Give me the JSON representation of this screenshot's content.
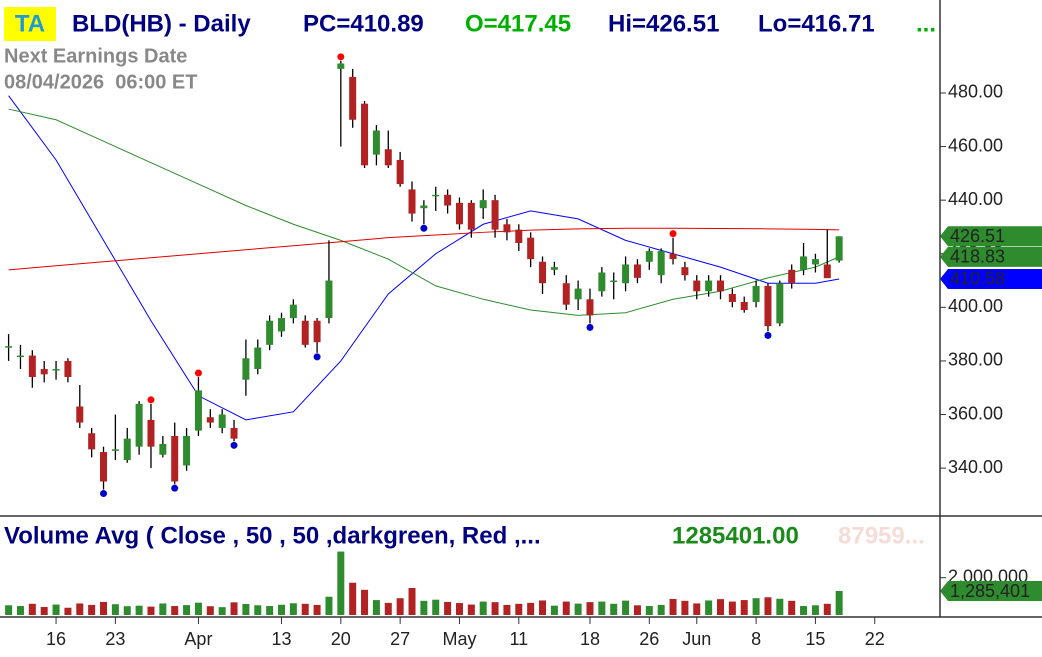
{
  "header": {
    "badge": "TA",
    "symbol": "BLD(HB) - Daily",
    "pc": "PC=410.89",
    "open": "O=417.45",
    "high": "Hi=426.51",
    "low": "Lo=416.71",
    "more": "...",
    "earnings_title": "Next Earnings Date",
    "earnings_date": "08/04/2026  06:00 ET"
  },
  "chart_data": {
    "type": "candlestick",
    "up_color": "#2e8b2e",
    "down_color": "#b22222",
    "x": [
      0,
      1,
      2,
      3,
      4,
      5,
      6,
      7,
      8,
      9,
      10,
      11,
      12,
      13,
      14,
      15,
      16,
      17,
      18,
      19,
      20,
      21,
      22,
      23,
      24,
      25,
      26,
      27,
      28,
      29,
      30,
      31,
      32,
      33,
      34,
      35,
      36,
      37,
      38,
      39,
      40,
      41,
      42,
      43,
      44,
      45,
      46,
      47,
      48,
      49,
      50,
      51,
      52,
      53,
      54,
      55,
      56,
      57,
      58,
      59,
      60,
      61,
      62,
      63,
      64,
      65,
      66,
      67,
      68,
      69,
      70
    ],
    "open": [
      385,
      382,
      382,
      377,
      377,
      380,
      363,
      353,
      346,
      347,
      343,
      348,
      358,
      345,
      352,
      341,
      354,
      359,
      355,
      355,
      373,
      377,
      386,
      391,
      396,
      395,
      395,
      396,
      489,
      486,
      476,
      457,
      459,
      455,
      444,
      437,
      442,
      442,
      439,
      439,
      437,
      440,
      431,
      429,
      426,
      417,
      414,
      409,
      403,
      403,
      406,
      410,
      409,
      416,
      417,
      412,
      420,
      415,
      410,
      406,
      410,
      405,
      402,
      402,
      408,
      394,
      414,
      414,
      416,
      416,
      417.45
    ],
    "high": [
      390,
      386,
      384,
      380,
      380,
      381,
      371,
      355,
      348,
      360,
      355,
      365,
      364,
      352,
      357,
      355,
      374,
      362,
      362,
      358,
      388,
      388,
      397,
      398,
      403,
      397,
      396,
      425,
      492,
      489,
      477,
      468,
      466,
      458,
      447,
      440,
      445,
      444,
      441,
      440,
      444,
      442,
      433,
      431,
      428,
      419,
      417,
      412,
      410,
      407,
      415,
      413,
      419,
      418,
      422,
      422,
      426,
      417,
      412,
      412,
      412,
      407,
      404,
      410,
      409,
      410,
      416,
      424,
      420,
      429,
      426.51
    ],
    "low": [
      380,
      377,
      370,
      372,
      373,
      372,
      355,
      344,
      332,
      343,
      342,
      345,
      340,
      344,
      334,
      339,
      352,
      355,
      353,
      350,
      367,
      375,
      384,
      389,
      394,
      385,
      383,
      394,
      460,
      467,
      452,
      453,
      452,
      445,
      432,
      431,
      436,
      435,
      429,
      426,
      433,
      426,
      425,
      421,
      415,
      405,
      412,
      399,
      399,
      394,
      404,
      403,
      406,
      409,
      414,
      409,
      416,
      410,
      403,
      404,
      403,
      400,
      398,
      400,
      391,
      393,
      407,
      412,
      413,
      411,
      416.71
    ],
    "close": [
      385.5,
      382,
      374,
      375,
      377,
      374,
      357,
      347,
      335,
      347,
      351,
      364,
      348,
      349,
      335,
      352,
      369,
      357,
      360,
      351,
      381,
      385,
      395,
      396,
      401,
      386,
      387,
      410,
      491,
      470,
      453,
      466,
      453,
      446,
      435,
      438,
      442,
      438,
      431,
      429,
      440,
      429,
      428,
      424,
      418,
      409,
      415,
      401,
      407,
      397,
      413,
      410,
      416,
      411,
      421,
      421,
      418,
      412,
      406,
      410,
      406,
      402,
      399,
      408,
      393,
      409,
      409,
      419,
      418,
      410.89,
      426.51
    ],
    "swing_highs": [
      12,
      16,
      28,
      56
    ],
    "swing_lows": [
      8,
      14,
      19,
      26,
      35,
      49,
      64
    ],
    "high_dot_color": "#ff0000",
    "low_dot_color": "#0000cc",
    "moving_averages": [
      {
        "color": "#0000ff",
        "x": [
          0,
          4,
          8,
          12,
          16,
          20,
          24,
          28,
          32,
          36,
          40,
          44,
          48,
          52,
          56,
          60,
          64,
          68,
          70
        ],
        "values": [
          479,
          455,
          425,
          395,
          367,
          358,
          361,
          380,
          405,
          420,
          431,
          436,
          433,
          425,
          420,
          415,
          409,
          409,
          410.58
        ]
      },
      {
        "color": "#2e8b2e",
        "x": [
          0,
          4,
          8,
          12,
          16,
          20,
          24,
          28,
          32,
          36,
          40,
          44,
          48,
          52,
          56,
          60,
          64,
          68,
          70
        ],
        "values": [
          474,
          470,
          462,
          454,
          446,
          438,
          431,
          425,
          418,
          408,
          403,
          399,
          397,
          398,
          403,
          406,
          411,
          415,
          418.83
        ]
      },
      {
        "color": "#e00000",
        "x": [
          0,
          4,
          8,
          12,
          16,
          20,
          24,
          28,
          32,
          36,
          40,
          44,
          48,
          52,
          56,
          60,
          64,
          68,
          70
        ],
        "values": [
          414,
          415.5,
          417,
          418.5,
          420,
          421.5,
          423,
          424.5,
          426,
          427,
          428,
          428.8,
          429.3,
          429.5,
          429.5,
          429.4,
          429.3,
          429.1,
          428.9
        ]
      }
    ],
    "ylim": [
      322.5,
      514.7
    ],
    "yticks": [
      {
        "value": 340,
        "label": "340.00"
      },
      {
        "value": 360,
        "label": "360.00"
      },
      {
        "value": 380,
        "label": "380.00"
      },
      {
        "value": 400,
        "label": "400.00"
      },
      {
        "value": 420,
        "label": "420.00"
      },
      {
        "value": 440,
        "label": "440.00"
      },
      {
        "value": 460,
        "label": "460.00"
      },
      {
        "value": 480,
        "label": "480.00"
      }
    ],
    "price_tags": [
      {
        "value": 426.51,
        "label": "426.51",
        "color": "#2e8b2e"
      },
      {
        "value": 418.83,
        "label": "418.83",
        "color": "#2e8b2e"
      },
      {
        "value": 410.58,
        "label": "410.58",
        "color": "#0000ff"
      }
    ],
    "xlim": [
      -0.725,
      78.5
    ],
    "xticks": [
      {
        "value": 4,
        "label": "16"
      },
      {
        "value": 9,
        "label": "23"
      },
      {
        "value": 16,
        "label": "Apr"
      },
      {
        "value": 23,
        "label": "13"
      },
      {
        "value": 28,
        "label": "20"
      },
      {
        "value": 33,
        "label": "27"
      },
      {
        "value": 38,
        "label": "May"
      },
      {
        "value": 43,
        "label": "11"
      },
      {
        "value": 49,
        "label": "18"
      },
      {
        "value": 54,
        "label": "26"
      },
      {
        "value": 58,
        "label": "Jun"
      },
      {
        "value": 63,
        "label": "8"
      },
      {
        "value": 68,
        "label": "15"
      },
      {
        "value": 73,
        "label": "22"
      }
    ],
    "volume": {
      "title": "Volume Avg ( Close , 50 , 50 ,darkgreen, Red ,...",
      "last_text": "1285401.00",
      "faded_text": "87959...",
      "values": [
        520000,
        480000,
        600000,
        430000,
        560000,
        390000,
        620000,
        540000,
        700000,
        580000,
        470000,
        500000,
        450000,
        620000,
        480000,
        530000,
        660000,
        470000,
        420000,
        680000,
        590000,
        520000,
        480000,
        550000,
        630000,
        600000,
        540000,
        980000,
        3400000,
        1730000,
        1350000,
        800000,
        650000,
        900000,
        1450000,
        760000,
        820000,
        700000,
        640000,
        560000,
        720000,
        690000,
        540000,
        600000,
        650000,
        780000,
        500000,
        720000,
        610000,
        690000,
        720000,
        600000,
        770000,
        520000,
        480000,
        540000,
        860000,
        760000,
        620000,
        780000,
        850000,
        720000,
        800000,
        900000,
        950000,
        870000,
        760000,
        480000,
        520000,
        600000,
        1285401
      ],
      "ylim": [
        0,
        5200000
      ],
      "yticks": [
        {
          "value": 2000000,
          "label": "2,000,000"
        }
      ],
      "tag": {
        "value": 1285401,
        "label": "1,285,401",
        "color": "#2e8b2e"
      }
    }
  }
}
